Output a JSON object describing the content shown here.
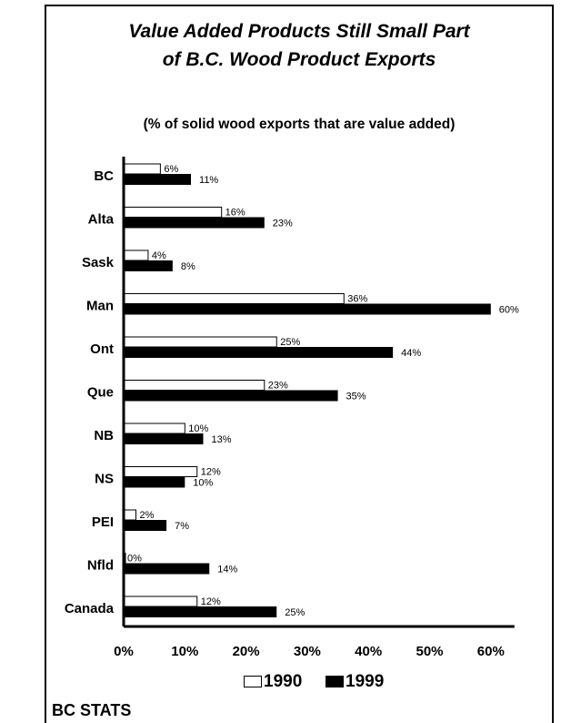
{
  "title_line1": "Value Added Products Still Small Part",
  "title_line2": "of B.C. Wood Product Exports",
  "subtitle": "(% of solid wood exports that are value added)",
  "footer": "BC STATS",
  "colors": {
    "series_1990": "#ffffff",
    "series_1999": "#000000",
    "axis": "#000000"
  },
  "chart_data": {
    "type": "bar",
    "orientation": "horizontal",
    "categories": [
      "BC",
      "Alta",
      "Sask",
      "Man",
      "Ont",
      "Que",
      "NB",
      "NS",
      "PEI",
      "Nfld",
      "Canada"
    ],
    "series": [
      {
        "name": "1990",
        "values": [
          6,
          16,
          4,
          36,
          25,
          23,
          10,
          12,
          2,
          0,
          12
        ],
        "labels": [
          "6%",
          "16%",
          "4%",
          "36%",
          "25%",
          "23%",
          "10%",
          "12%",
          "2%",
          "0%",
          "12%"
        ]
      },
      {
        "name": "1999",
        "values": [
          11,
          23,
          8,
          60,
          44,
          35,
          13,
          10,
          7,
          14,
          25
        ],
        "labels": [
          "11%",
          "23%",
          "8%",
          "60%",
          "44%",
          "35%",
          "13%",
          "10%",
          "7%",
          "14%",
          "25%"
        ]
      }
    ],
    "xlim": [
      0,
      60
    ],
    "xticks": [
      0,
      10,
      20,
      30,
      40,
      50,
      60
    ],
    "xtick_labels": [
      "0%",
      "10%",
      "20%",
      "30%",
      "40%",
      "50%",
      "60%"
    ],
    "grid": false,
    "legend_position": "bottom"
  }
}
